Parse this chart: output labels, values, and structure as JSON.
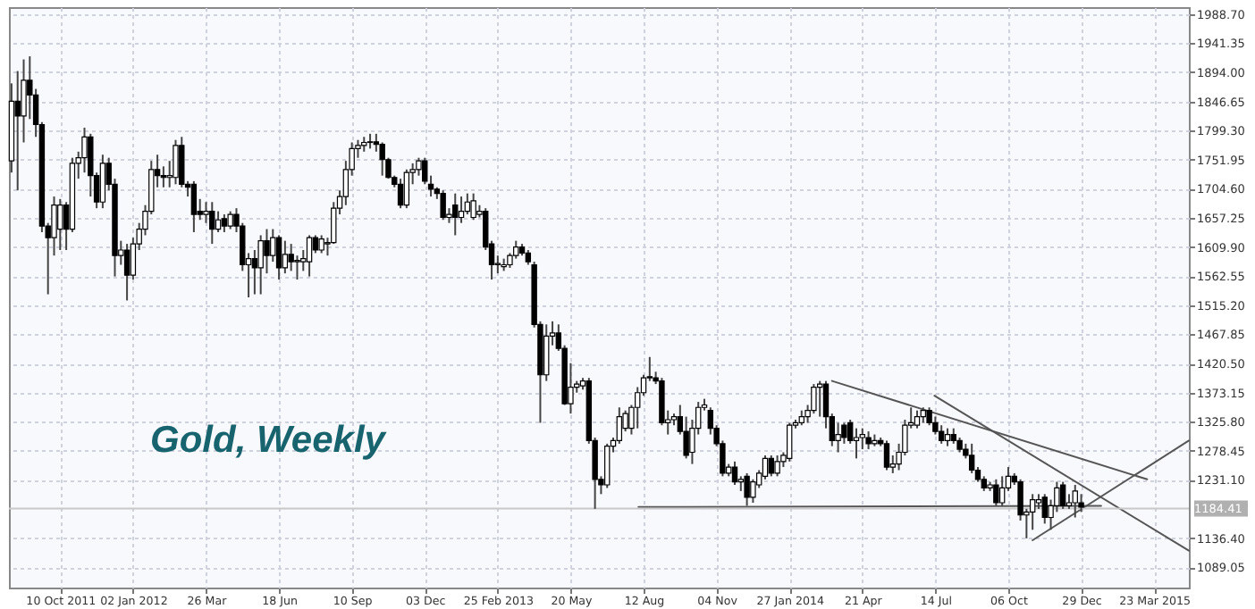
{
  "chart_data": {
    "type": "candlestick",
    "annotations": [
      "Gold, Weekly"
    ],
    "x": [
      "2011-08-15",
      "2011-08-22",
      "2011-08-29",
      "2011-09-05",
      "2011-09-12",
      "2011-09-19",
      "2011-09-26",
      "2011-10-03",
      "2011-10-10",
      "2011-10-17",
      "2011-10-24",
      "2011-10-31",
      "2011-11-07",
      "2011-11-14",
      "2011-11-21",
      "2011-11-28",
      "2011-12-05",
      "2011-12-12",
      "2011-12-19",
      "2011-12-26",
      "2012-01-02",
      "2012-01-09",
      "2012-01-16",
      "2012-01-23",
      "2012-01-30",
      "2012-02-06",
      "2012-02-13",
      "2012-02-20",
      "2012-02-27",
      "2012-03-05",
      "2012-03-12",
      "2012-03-19",
      "2012-03-26",
      "2012-04-02",
      "2012-04-09",
      "2012-04-16",
      "2012-04-23",
      "2012-04-30",
      "2012-05-07",
      "2012-05-14",
      "2012-05-21",
      "2012-05-28",
      "2012-06-04",
      "2012-06-11",
      "2012-06-18",
      "2012-06-25",
      "2012-07-02",
      "2012-07-09",
      "2012-07-16",
      "2012-07-23",
      "2012-07-30",
      "2012-08-06",
      "2012-08-13",
      "2012-08-20",
      "2012-08-27",
      "2012-09-03",
      "2012-09-10",
      "2012-09-17",
      "2012-09-24",
      "2012-10-01",
      "2012-10-08",
      "2012-10-15",
      "2012-10-22",
      "2012-10-29",
      "2012-11-05",
      "2012-11-12",
      "2012-11-19",
      "2012-11-26",
      "2012-12-03",
      "2012-12-10",
      "2012-12-17",
      "2012-12-24",
      "2012-12-31",
      "2013-01-07",
      "2013-01-14",
      "2013-01-21",
      "2013-01-28",
      "2013-02-04",
      "2013-02-11",
      "2013-02-18",
      "2013-02-25",
      "2013-03-04",
      "2013-03-11",
      "2013-03-18",
      "2013-03-25",
      "2013-04-01",
      "2013-04-08",
      "2013-04-15",
      "2013-04-22",
      "2013-04-29",
      "2013-05-06",
      "2013-05-13",
      "2013-05-20",
      "2013-05-27",
      "2013-06-03",
      "2013-06-10",
      "2013-06-17",
      "2013-06-24",
      "2013-07-01",
      "2013-07-08",
      "2013-07-15",
      "2013-07-22",
      "2013-07-29",
      "2013-08-05",
      "2013-08-12",
      "2013-08-19",
      "2013-08-26",
      "2013-09-02",
      "2013-09-09",
      "2013-09-16",
      "2013-09-23",
      "2013-09-30",
      "2013-10-07",
      "2013-10-14",
      "2013-10-21",
      "2013-10-28",
      "2013-11-04",
      "2013-11-11",
      "2013-11-18",
      "2013-11-25",
      "2013-12-02",
      "2013-12-09",
      "2013-12-16",
      "2013-12-23",
      "2013-12-30",
      "2014-01-06",
      "2014-01-13",
      "2014-01-20",
      "2014-01-27",
      "2014-02-03",
      "2014-02-10",
      "2014-02-17",
      "2014-02-24",
      "2014-03-03",
      "2014-03-10",
      "2014-03-17",
      "2014-03-24",
      "2014-03-31",
      "2014-04-07",
      "2014-04-14",
      "2014-04-21",
      "2014-04-28",
      "2014-05-05",
      "2014-05-12",
      "2014-05-19",
      "2014-05-26",
      "2014-06-02",
      "2014-06-09",
      "2014-06-16",
      "2014-06-23",
      "2014-06-30",
      "2014-07-07",
      "2014-07-14",
      "2014-07-21",
      "2014-07-28",
      "2014-08-04",
      "2014-08-11",
      "2014-08-18",
      "2014-08-25",
      "2014-09-01",
      "2014-09-08",
      "2014-09-15",
      "2014-09-22",
      "2014-09-29",
      "2014-10-06",
      "2014-10-13",
      "2014-10-20",
      "2014-10-27",
      "2014-11-03",
      "2014-11-10",
      "2014-11-17",
      "2014-11-24",
      "2014-12-01",
      "2014-12-08",
      "2014-12-15",
      "2014-12-22",
      "2014-12-29"
    ],
    "ohlc": [
      [
        1750,
        1876,
        1731,
        1847
      ],
      [
        1847,
        1896,
        1702,
        1823
      ],
      [
        1823,
        1915,
        1780,
        1881
      ],
      [
        1881,
        1920,
        1818,
        1857
      ],
      [
        1857,
        1867,
        1789,
        1809
      ],
      [
        1809,
        1813,
        1634,
        1644
      ],
      [
        1644,
        1649,
        1533,
        1625
      ],
      [
        1625,
        1692,
        1596,
        1678
      ],
      [
        1639,
        1688,
        1605,
        1678
      ],
      [
        1678,
        1683,
        1605,
        1639
      ],
      [
        1639,
        1755,
        1634,
        1746
      ],
      [
        1746,
        1765,
        1721,
        1755
      ],
      [
        1755,
        1804,
        1731,
        1789
      ],
      [
        1789,
        1794,
        1692,
        1726
      ],
      [
        1726,
        1731,
        1673,
        1683
      ],
      [
        1683,
        1760,
        1673,
        1746
      ],
      [
        1746,
        1755,
        1702,
        1712
      ],
      [
        1712,
        1721,
        1562,
        1596
      ],
      [
        1596,
        1620,
        1581,
        1605
      ],
      [
        1605,
        1615,
        1523,
        1564
      ],
      [
        1564,
        1625,
        1557,
        1615
      ],
      [
        1615,
        1649,
        1605,
        1639
      ],
      [
        1639,
        1678,
        1629,
        1668
      ],
      [
        1668,
        1750,
        1663,
        1736
      ],
      [
        1736,
        1760,
        1707,
        1726
      ],
      [
        1726,
        1741,
        1707,
        1723
      ],
      [
        1723,
        1750,
        1707,
        1726
      ],
      [
        1723,
        1784,
        1712,
        1775
      ],
      [
        1775,
        1789,
        1707,
        1712
      ],
      [
        1712,
        1717,
        1692,
        1707
      ],
      [
        1712,
        1717,
        1634,
        1663
      ],
      [
        1668,
        1688,
        1654,
        1663
      ],
      [
        1663,
        1683,
        1649,
        1668
      ],
      [
        1668,
        1683,
        1615,
        1639
      ],
      [
        1639,
        1668,
        1634,
        1654
      ],
      [
        1656,
        1663,
        1634,
        1644
      ],
      [
        1644,
        1668,
        1639,
        1663
      ],
      [
        1663,
        1673,
        1634,
        1644
      ],
      [
        1644,
        1649,
        1571,
        1581
      ],
      [
        1581,
        1600,
        1528,
        1591
      ],
      [
        1591,
        1605,
        1533,
        1576
      ],
      [
        1576,
        1629,
        1533,
        1620
      ],
      [
        1620,
        1639,
        1567,
        1596
      ],
      [
        1596,
        1639,
        1586,
        1625
      ],
      [
        1625,
        1629,
        1557,
        1576
      ],
      [
        1576,
        1620,
        1567,
        1598
      ],
      [
        1598,
        1615,
        1571,
        1586
      ],
      [
        1586,
        1596,
        1557,
        1588
      ],
      [
        1586,
        1605,
        1571,
        1591
      ],
      [
        1586,
        1629,
        1562,
        1625
      ],
      [
        1625,
        1629,
        1600,
        1605
      ],
      [
        1605,
        1629,
        1600,
        1623
      ],
      [
        1615,
        1625,
        1596,
        1617
      ],
      [
        1617,
        1683,
        1615,
        1673
      ],
      [
        1673,
        1702,
        1663,
        1692
      ],
      [
        1692,
        1750,
        1678,
        1736
      ],
      [
        1736,
        1780,
        1726,
        1770
      ],
      [
        1770,
        1784,
        1755,
        1775
      ],
      [
        1775,
        1789,
        1765,
        1780
      ],
      [
        1780,
        1794,
        1770,
        1781
      ],
      [
        1781,
        1794,
        1765,
        1777
      ],
      [
        1777,
        1780,
        1726,
        1752
      ],
      [
        1752,
        1755,
        1721,
        1723
      ],
      [
        1723,
        1726,
        1707,
        1712
      ],
      [
        1712,
        1721,
        1673,
        1678
      ],
      [
        1678,
        1736,
        1673,
        1731
      ],
      [
        1731,
        1746,
        1712,
        1736
      ],
      [
        1736,
        1755,
        1726,
        1750
      ],
      [
        1750,
        1755,
        1712,
        1717
      ],
      [
        1712,
        1726,
        1692,
        1704
      ],
      [
        1704,
        1707,
        1688,
        1697
      ],
      [
        1697,
        1702,
        1654,
        1658
      ],
      [
        1658,
        1673,
        1649,
        1663
      ],
      [
        1678,
        1697,
        1629,
        1658
      ],
      [
        1658,
        1692,
        1649,
        1668
      ],
      [
        1668,
        1697,
        1663,
        1683
      ],
      [
        1658,
        1697,
        1654,
        1685
      ],
      [
        1663,
        1678,
        1658,
        1668
      ],
      [
        1668,
        1673,
        1605,
        1610
      ],
      [
        1615,
        1620,
        1557,
        1581
      ],
      [
        1581,
        1596,
        1567,
        1583
      ],
      [
        1578,
        1591,
        1571,
        1581
      ],
      [
        1581,
        1600,
        1576,
        1596
      ],
      [
        1596,
        1620,
        1591,
        1610
      ],
      [
        1610,
        1615,
        1596,
        1600
      ],
      [
        1600,
        1605,
        1581,
        1586
      ],
      [
        1581,
        1586,
        1479,
        1484
      ],
      [
        1484,
        1489,
        1324,
        1402
      ],
      [
        1402,
        1484,
        1392,
        1465
      ],
      [
        1465,
        1489,
        1450,
        1470
      ],
      [
        1470,
        1484,
        1441,
        1445
      ],
      [
        1445,
        1450,
        1353,
        1355
      ],
      [
        1355,
        1421,
        1339,
        1382
      ],
      [
        1382,
        1392,
        1373,
        1387
      ],
      [
        1384,
        1397,
        1378,
        1392
      ],
      [
        1392,
        1397,
        1290,
        1295
      ],
      [
        1295,
        1300,
        1184,
        1232
      ],
      [
        1232,
        1237,
        1208,
        1223
      ],
      [
        1223,
        1290,
        1218,
        1286
      ],
      [
        1286,
        1300,
        1276,
        1295
      ],
      [
        1295,
        1349,
        1290,
        1334
      ],
      [
        1315,
        1344,
        1310,
        1339
      ],
      [
        1315,
        1353,
        1305,
        1349
      ],
      [
        1349,
        1382,
        1315,
        1373
      ],
      [
        1373,
        1402,
        1368,
        1397
      ],
      [
        1397,
        1431,
        1392,
        1399
      ],
      [
        1397,
        1407,
        1387,
        1392
      ],
      [
        1392,
        1397,
        1320,
        1324
      ],
      [
        1324,
        1344,
        1305,
        1329
      ],
      [
        1329,
        1339,
        1320,
        1334
      ],
      [
        1334,
        1353,
        1305,
        1310
      ],
      [
        1310,
        1334,
        1266,
        1271
      ],
      [
        1276,
        1329,
        1257,
        1315
      ],
      [
        1315,
        1358,
        1305,
        1349
      ],
      [
        1349,
        1363,
        1344,
        1353
      ],
      [
        1344,
        1349,
        1305,
        1315
      ],
      [
        1315,
        1320,
        1286,
        1290
      ],
      [
        1290,
        1295,
        1237,
        1242
      ],
      [
        1242,
        1257,
        1237,
        1252
      ],
      [
        1252,
        1261,
        1223,
        1228
      ],
      [
        1228,
        1237,
        1213,
        1232
      ],
      [
        1237,
        1242,
        1189,
        1203
      ],
      [
        1203,
        1232,
        1194,
        1228
      ],
      [
        1223,
        1247,
        1218,
        1242
      ],
      [
        1237,
        1271,
        1232,
        1266
      ],
      [
        1266,
        1271,
        1237,
        1242
      ],
      [
        1242,
        1271,
        1237,
        1261
      ],
      [
        1261,
        1276,
        1252,
        1271
      ],
      [
        1266,
        1324,
        1261,
        1320
      ],
      [
        1320,
        1329,
        1315,
        1324
      ],
      [
        1324,
        1344,
        1320,
        1334
      ],
      [
        1334,
        1353,
        1324,
        1344
      ],
      [
        1344,
        1387,
        1339,
        1382
      ],
      [
        1382,
        1392,
        1334,
        1387
      ],
      [
        1387,
        1392,
        1315,
        1334
      ],
      [
        1334,
        1339,
        1286,
        1295
      ],
      [
        1295,
        1324,
        1276,
        1305
      ],
      [
        1320,
        1324,
        1290,
        1300
      ],
      [
        1324,
        1329,
        1290,
        1295
      ],
      [
        1295,
        1315,
        1266,
        1300
      ],
      [
        1300,
        1315,
        1281,
        1305
      ],
      [
        1300,
        1310,
        1281,
        1290
      ],
      [
        1290,
        1305,
        1286,
        1295
      ],
      [
        1295,
        1300,
        1286,
        1290
      ],
      [
        1290,
        1295,
        1247,
        1252
      ],
      [
        1252,
        1271,
        1242,
        1257
      ],
      [
        1257,
        1290,
        1247,
        1276
      ],
      [
        1276,
        1329,
        1271,
        1320
      ],
      [
        1320,
        1349,
        1315,
        1324
      ],
      [
        1320,
        1344,
        1315,
        1334
      ],
      [
        1334,
        1349,
        1324,
        1344
      ],
      [
        1344,
        1349,
        1320,
        1324
      ],
      [
        1324,
        1334,
        1305,
        1310
      ],
      [
        1310,
        1320,
        1290,
        1295
      ],
      [
        1295,
        1315,
        1286,
        1305
      ],
      [
        1305,
        1315,
        1290,
        1295
      ],
      [
        1295,
        1300,
        1276,
        1281
      ],
      [
        1281,
        1290,
        1266,
        1271
      ],
      [
        1271,
        1290,
        1242,
        1247
      ],
      [
        1247,
        1252,
        1228,
        1232
      ],
      [
        1232,
        1237,
        1213,
        1218
      ],
      [
        1218,
        1228,
        1213,
        1223
      ],
      [
        1223,
        1232,
        1189,
        1194
      ],
      [
        1194,
        1237,
        1189,
        1218
      ],
      [
        1218,
        1252,
        1213,
        1237
      ],
      [
        1237,
        1242,
        1223,
        1228
      ],
      [
        1228,
        1232,
        1165,
        1174
      ],
      [
        1174,
        1184,
        1136,
        1179
      ],
      [
        1179,
        1208,
        1150,
        1199
      ],
      [
        1194,
        1208,
        1184,
        1199
      ],
      [
        1203,
        1208,
        1160,
        1170
      ],
      [
        1170,
        1199,
        1150,
        1189
      ],
      [
        1189,
        1228,
        1179,
        1218
      ],
      [
        1223,
        1228,
        1184,
        1189
      ],
      [
        1189,
        1208,
        1184,
        1194
      ],
      [
        1194,
        1223,
        1170,
        1213
      ],
      [
        1194,
        1208,
        1179,
        1187
      ]
    ],
    "series": [
      {
        "type": "line",
        "color": "#555555",
        "x": [
          "2014-03-17",
          "2015-03-15"
        ],
        "values": [
          1392,
          1232
        ]
      },
      {
        "type": "line",
        "color": "#555555",
        "x": [
          "2014-07-13",
          "2015-05-02"
        ],
        "values": [
          1368,
          1116
        ]
      },
      {
        "type": "line",
        "color": "#555555",
        "x": [
          "2014-11-03",
          "2015-05-02"
        ],
        "values": [
          1133,
          1295
        ]
      },
      {
        "type": "line",
        "color": "#555555",
        "x": [
          "2013-08-06",
          "2015-01-21"
        ],
        "values": [
          1187,
          1189
        ]
      }
    ],
    "ref_lines": [
      {
        "axis": "y",
        "value": 1184.41,
        "label": "1184.41",
        "color": "#c8c8c8"
      }
    ],
    "xlim": [
      "2011-08-12",
      "2015-05-02"
    ],
    "xticks": [
      {
        "value": "2011-10-10",
        "label": "10 Oct 2011"
      },
      {
        "value": "2012-01-02",
        "label": "02 Jan 2012"
      },
      {
        "value": "2012-03-26",
        "label": "26 Mar"
      },
      {
        "value": "2012-06-18",
        "label": "18 Jun"
      },
      {
        "value": "2012-09-10",
        "label": "10 Sep"
      },
      {
        "value": "2012-12-03",
        "label": "03 Dec"
      },
      {
        "value": "2013-02-25",
        "label": "25 Feb 2013"
      },
      {
        "value": "2013-05-20",
        "label": "20 May"
      },
      {
        "value": "2013-08-12",
        "label": "12 Aug"
      },
      {
        "value": "2013-11-04",
        "label": "04 Nov"
      },
      {
        "value": "2014-01-27",
        "label": "27 Jan 2014"
      },
      {
        "value": "2014-04-21",
        "label": "21 Apr"
      },
      {
        "value": "2014-07-14",
        "label": "14 Jul"
      },
      {
        "value": "2014-10-06",
        "label": "06 Oct"
      },
      {
        "value": "2014-12-29",
        "label": "29 Dec"
      },
      {
        "value": "2015-03-23",
        "label": "23 Mar 2015"
      }
    ],
    "ylim": [
      1056,
      2000
    ],
    "yticks": [
      {
        "value": 1089.05,
        "label": "1089.05"
      },
      {
        "value": 1136.4,
        "label": "1136.40"
      },
      {
        "value": 1231.1,
        "label": "1231.10"
      },
      {
        "value": 1278.45,
        "label": "1278.45"
      },
      {
        "value": 1325.8,
        "label": "1325.80"
      },
      {
        "value": 1373.15,
        "label": "1373.15"
      },
      {
        "value": 1420.5,
        "label": "1420.50"
      },
      {
        "value": 1467.85,
        "label": "1467.85"
      },
      {
        "value": 1515.2,
        "label": "1515.20"
      },
      {
        "value": 1562.55,
        "label": "1562.55"
      },
      {
        "value": 1609.9,
        "label": "1609.90"
      },
      {
        "value": 1657.25,
        "label": "1657.25"
      },
      {
        "value": 1704.6,
        "label": "1704.60"
      },
      {
        "value": 1751.95,
        "label": "1751.95"
      },
      {
        "value": 1799.3,
        "label": "1799.30"
      },
      {
        "value": 1846.65,
        "label": "1846.65"
      },
      {
        "value": 1894.0,
        "label": "1894.00"
      },
      {
        "value": 1941.35,
        "label": "1941.35"
      },
      {
        "value": 1988.7,
        "label": "1988.70"
      }
    ],
    "grid": true
  }
}
